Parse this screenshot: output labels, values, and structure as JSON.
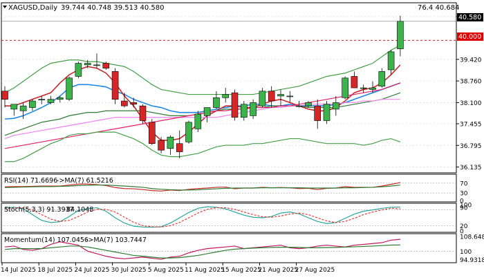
{
  "header": {
    "symbol": "XAGUSD,Daily",
    "ohlc": "39.744 40.748 39.513 40.580",
    "right_info": "76.4 40.684"
  },
  "chart_data": [
    {
      "type": "candlestick",
      "title": "XAGUSD,Daily",
      "ylim": [
        36.0,
        40.85
      ],
      "price_axis_ticks": [
        "40.725",
        "39.420",
        "38.760",
        "38.100",
        "37.455",
        "36.795",
        "36.135"
      ],
      "current_price_label": "40.580",
      "level_label": "40.000",
      "level_value": 40.0,
      "x_tick_labels": [
        {
          "label": "14 Jul 2025",
          "index": 0
        },
        {
          "label": "18 Jul 2025",
          "index": 4
        },
        {
          "label": "24 Jul 2025",
          "index": 8
        },
        {
          "label": "30 Jul 2025",
          "index": 12
        },
        {
          "label": "5 Aug 2025",
          "index": 16
        },
        {
          "label": "11 Aug 2025",
          "index": 20
        },
        {
          "label": "15 Aug 2025",
          "index": 24
        },
        {
          "label": "21 Aug 2025",
          "index": 28
        },
        {
          "label": "27 Aug 2025",
          "index": 32
        }
      ],
      "candles": [
        {
          "o": 38.45,
          "h": 38.6,
          "l": 37.95,
          "c": 38.2
        },
        {
          "o": 37.9,
          "h": 38.05,
          "l": 37.7,
          "c": 38.05
        },
        {
          "o": 37.85,
          "h": 38.1,
          "l": 37.6,
          "c": 38.0
        },
        {
          "o": 37.95,
          "h": 38.2,
          "l": 37.85,
          "c": 38.15
        },
        {
          "o": 38.2,
          "h": 38.3,
          "l": 38.05,
          "c": 38.2
        },
        {
          "o": 38.1,
          "h": 38.3,
          "l": 38.05,
          "c": 38.2
        },
        {
          "o": 38.2,
          "h": 38.3,
          "l": 38.1,
          "c": 38.25
        },
        {
          "o": 38.2,
          "h": 38.9,
          "l": 38.15,
          "c": 38.85
        },
        {
          "o": 38.9,
          "h": 39.35,
          "l": 38.85,
          "c": 39.3
        },
        {
          "o": 39.25,
          "h": 39.4,
          "l": 39.15,
          "c": 39.3
        },
        {
          "o": 39.25,
          "h": 39.6,
          "l": 39.15,
          "c": 39.25
        },
        {
          "o": 39.3,
          "h": 39.35,
          "l": 39.1,
          "c": 39.15
        },
        {
          "o": 39.05,
          "h": 39.15,
          "l": 38.05,
          "c": 38.2
        },
        {
          "o": 38.15,
          "h": 38.4,
          "l": 37.95,
          "c": 38.0
        },
        {
          "o": 38.1,
          "h": 38.25,
          "l": 37.95,
          "c": 38.05
        },
        {
          "o": 38.0,
          "h": 38.05,
          "l": 37.45,
          "c": 37.55
        },
        {
          "o": 37.5,
          "h": 37.6,
          "l": 36.8,
          "c": 36.85
        },
        {
          "o": 36.95,
          "h": 37.05,
          "l": 36.55,
          "c": 36.65
        },
        {
          "o": 36.7,
          "h": 37.1,
          "l": 36.5,
          "c": 37.05
        },
        {
          "o": 36.85,
          "h": 37.25,
          "l": 36.4,
          "c": 36.6
        },
        {
          "o": 36.9,
          "h": 37.55,
          "l": 36.85,
          "c": 37.5
        },
        {
          "o": 37.3,
          "h": 37.85,
          "l": 37.2,
          "c": 37.75
        },
        {
          "o": 37.7,
          "h": 37.95,
          "l": 37.5,
          "c": 37.95
        },
        {
          "o": 37.95,
          "h": 38.45,
          "l": 37.9,
          "c": 38.25
        },
        {
          "o": 38.25,
          "h": 38.55,
          "l": 38.1,
          "c": 38.35
        },
        {
          "o": 38.4,
          "h": 38.5,
          "l": 37.55,
          "c": 37.65
        },
        {
          "o": 37.65,
          "h": 38.15,
          "l": 37.55,
          "c": 38.05
        },
        {
          "o": 37.7,
          "h": 38.2,
          "l": 37.6,
          "c": 38.1
        },
        {
          "o": 38.0,
          "h": 38.55,
          "l": 37.95,
          "c": 38.45
        },
        {
          "o": 38.45,
          "h": 38.6,
          "l": 37.95,
          "c": 38.15
        },
        {
          "o": 38.3,
          "h": 38.5,
          "l": 38.0,
          "c": 38.35
        },
        {
          "o": 38.3,
          "h": 38.45,
          "l": 38.1,
          "c": 38.3
        },
        {
          "o": 38.0,
          "h": 38.15,
          "l": 37.95,
          "c": 38.0
        },
        {
          "o": 38.0,
          "h": 38.15,
          "l": 37.95,
          "c": 38.1
        },
        {
          "o": 38.0,
          "h": 38.2,
          "l": 37.3,
          "c": 37.55
        },
        {
          "o": 37.55,
          "h": 38.15,
          "l": 37.45,
          "c": 38.05
        },
        {
          "o": 37.9,
          "h": 38.3,
          "l": 37.7,
          "c": 38.1
        },
        {
          "o": 38.25,
          "h": 38.9,
          "l": 38.2,
          "c": 38.85
        },
        {
          "o": 38.9,
          "h": 39.05,
          "l": 38.55,
          "c": 38.55
        },
        {
          "o": 38.55,
          "h": 38.65,
          "l": 38.4,
          "c": 38.55
        },
        {
          "o": 38.5,
          "h": 38.75,
          "l": 38.4,
          "c": 38.55
        },
        {
          "o": 38.6,
          "h": 39.15,
          "l": 38.55,
          "c": 39.05
        },
        {
          "o": 39.1,
          "h": 39.7,
          "l": 38.95,
          "c": 39.65
        },
        {
          "o": 39.74,
          "h": 40.75,
          "l": 39.51,
          "c": 40.58
        }
      ],
      "series": [
        {
          "name": "",
          "color": "#1e88e5",
          "values": [
            37.6,
            37.62,
            37.7,
            37.82,
            37.95,
            38.1,
            38.3,
            38.55,
            38.65,
            38.65,
            38.62,
            38.58,
            38.45,
            38.35,
            38.2,
            38.1,
            38.0,
            37.95,
            37.85,
            37.8,
            37.8,
            37.8,
            37.85,
            37.9,
            37.95,
            38.0,
            38.0,
            38.05,
            38.05,
            38.0,
            38.0,
            38.05,
            38.0,
            38.0,
            38.0,
            38.0,
            38.05,
            38.1,
            38.2,
            38.3,
            38.4,
            38.5,
            38.6,
            38.7
          ]
        },
        {
          "name": "",
          "color": "#c62828",
          "values": [
            38.0,
            38.0,
            38.1,
            38.2,
            38.3,
            38.4,
            38.7,
            38.95,
            39.1,
            39.2,
            39.15,
            39.0,
            38.7,
            38.3,
            38.0,
            37.6,
            37.2,
            36.95,
            36.95,
            37.0,
            37.2,
            37.45,
            37.7,
            37.85,
            38.0,
            38.0,
            37.95,
            37.95,
            38.05,
            38.15,
            38.2,
            38.1,
            38.0,
            37.9,
            37.85,
            37.85,
            37.95,
            38.15,
            38.4,
            38.5,
            38.55,
            38.7,
            38.95,
            39.25
          ]
        },
        {
          "name": "",
          "color": "#2e7d32",
          "values": [
            37.1,
            37.2,
            37.3,
            37.4,
            37.5,
            37.55,
            37.6,
            37.7,
            37.75,
            37.8,
            37.8,
            37.85,
            37.85,
            37.85,
            37.85,
            37.85,
            37.8,
            37.75,
            37.7,
            37.7,
            37.7,
            37.75,
            37.8,
            37.85,
            37.9,
            37.9,
            37.9,
            37.95,
            37.95,
            38.0,
            38.0,
            38.0,
            38.0,
            37.95,
            37.95,
            37.95,
            37.95,
            38.0,
            38.05,
            38.1,
            38.15,
            38.2,
            38.3,
            38.4
          ]
        },
        {
          "name": "",
          "color": "#ee82ee",
          "values": [
            37.0,
            37.1,
            37.15,
            37.2,
            37.25,
            37.3,
            37.35,
            37.4,
            37.45,
            37.5,
            37.55,
            37.6,
            37.65,
            37.65,
            37.65,
            37.65,
            37.65,
            37.65,
            37.65,
            37.65,
            37.65,
            37.65,
            37.65,
            37.65,
            37.7,
            37.75,
            37.8,
            37.85,
            37.9,
            37.95,
            37.95,
            38.0,
            38.0,
            38.05,
            38.05,
            38.05,
            38.05,
            38.1,
            38.1,
            38.15,
            38.15,
            38.2,
            38.2,
            38.2
          ]
        },
        {
          "name": "",
          "color": "#e91e63",
          "values": [
            36.7,
            36.75,
            36.8,
            36.85,
            36.9,
            36.95,
            37.0,
            37.05,
            37.1,
            37.15,
            37.2,
            37.25,
            37.3,
            37.35,
            37.4,
            37.45,
            37.5,
            37.55,
            37.6,
            37.65,
            37.7,
            37.75,
            37.8,
            37.85,
            37.85,
            37.9,
            37.9,
            37.95,
            37.95,
            37.95,
            38.0,
            38.0,
            38.05,
            38.1,
            38.15,
            38.2,
            38.25,
            38.3,
            38.35,
            38.4,
            38.45,
            38.5,
            38.6,
            38.7
          ]
        },
        {
          "name": "",
          "color": "#43a047",
          "values": [
            38.4,
            38.55,
            38.75,
            38.95,
            39.15,
            39.3,
            39.35,
            39.4,
            39.4,
            39.35,
            39.35,
            39.3,
            39.25,
            39.2,
            39.05,
            38.85,
            38.65,
            38.5,
            38.45,
            38.4,
            38.35,
            38.35,
            38.35,
            38.35,
            38.35,
            38.35,
            38.35,
            38.35,
            38.4,
            38.45,
            38.5,
            38.55,
            38.6,
            38.7,
            38.8,
            38.9,
            38.95,
            39.0,
            39.1,
            39.2,
            39.3,
            39.5,
            39.7,
            39.85
          ]
        },
        {
          "name": "",
          "color": "#43a047",
          "values": [
            36.3,
            36.3,
            36.4,
            36.55,
            36.7,
            36.85,
            36.95,
            37.1,
            37.15,
            37.15,
            37.2,
            37.2,
            37.2,
            37.1,
            37.0,
            36.85,
            36.65,
            36.5,
            36.45,
            36.45,
            36.5,
            36.55,
            36.65,
            36.75,
            36.8,
            36.8,
            36.8,
            36.85,
            36.85,
            36.9,
            36.95,
            37.0,
            37.0,
            36.95,
            36.9,
            36.85,
            36.85,
            36.85,
            36.85,
            36.8,
            36.85,
            36.95,
            37.0,
            36.9
          ]
        }
      ]
    },
    {
      "type": "line",
      "title": "RSI(14) 71.6696 ->MA(7) 61.5216",
      "label_prefix": "RSI(14) 71.6696 ",
      "label_suffix": "->MA(7) 61.5216",
      "ylim": [
        0,
        100
      ],
      "tick_labels": [
        "70",
        "30",
        "0"
      ],
      "levels": [
        70,
        30
      ],
      "series": [
        {
          "name": "RSI(14)",
          "color": "#c62828",
          "values": [
            55,
            56,
            56,
            57,
            58,
            58,
            58,
            62,
            66,
            66,
            64,
            60,
            52,
            48,
            47,
            44,
            40,
            38,
            42,
            40,
            45,
            48,
            50,
            53,
            54,
            47,
            50,
            50,
            53,
            51,
            52,
            51,
            48,
            49,
            44,
            49,
            50,
            56,
            53,
            53,
            53,
            58,
            65,
            72
          ]
        },
        {
          "name": "MA(7)",
          "color": "#2e7d32",
          "values": [
            52,
            53,
            54,
            55,
            56,
            56,
            57,
            58,
            60,
            61,
            62,
            62,
            60,
            58,
            56,
            53,
            48,
            45,
            43,
            42,
            42,
            43,
            45,
            47,
            49,
            50,
            50,
            50,
            51,
            51,
            51,
            51,
            51,
            50,
            50,
            50,
            50,
            51,
            51,
            52,
            53,
            55,
            58,
            62
          ]
        }
      ]
    },
    {
      "type": "line",
      "title": "Stoch(5,3,3) 91.3937 84.1048",
      "label_prefix": "Stoch(5,3,3) 91.3937 ",
      "label_suffix": "84.1048",
      "ylim": [
        0,
        100
      ],
      "tick_labels": [
        "90",
        "100",
        "20",
        "0"
      ],
      "levels": [
        80,
        20
      ],
      "series": [
        {
          "name": "%K",
          "color": "#26a69a",
          "values": [
            88,
            90,
            85,
            62,
            40,
            32,
            35,
            55,
            78,
            85,
            88,
            75,
            50,
            30,
            18,
            15,
            14,
            16,
            30,
            50,
            70,
            86,
            92,
            90,
            84,
            72,
            60,
            52,
            50,
            55,
            68,
            72,
            65,
            50,
            36,
            28,
            32,
            48,
            64,
            75,
            80,
            86,
            90,
            91
          ]
        },
        {
          "name": "%D",
          "color": "#e53935",
          "values": [
            84,
            88,
            88,
            80,
            62,
            45,
            36,
            40,
            55,
            72,
            82,
            82,
            72,
            52,
            33,
            20,
            16,
            15,
            20,
            32,
            50,
            68,
            82,
            88,
            88,
            82,
            72,
            62,
            54,
            52,
            57,
            64,
            68,
            62,
            50,
            38,
            32,
            36,
            48,
            62,
            72,
            80,
            86,
            84
          ]
        }
      ]
    },
    {
      "type": "line",
      "title": "Momentum(14) 107.0456 ->MA(7) 103.7447",
      "label_prefix": "Momentum(14) 107.0456 ",
      "label_suffix": "->MA(7) 103.7447",
      "ylim": [
        94.0,
        109.5
      ],
      "tick_labels": [
        "108.6482",
        "100",
        "94.9318"
      ],
      "levels": [
        100
      ],
      "series": [
        {
          "name": "Momentum(14)",
          "color": "#c2185b",
          "values": [
            102.5,
            103.0,
            101.0,
            100.5,
            101.5,
            104.0,
            105.5,
            104.5,
            103.5,
            100.0,
            98.5,
            97.0,
            96.0,
            95.5,
            96.0,
            96.5,
            95.8,
            95.2,
            96.5,
            97.0,
            99.0,
            100.5,
            101.5,
            102.0,
            102.5,
            103.0,
            101.5,
            102.0,
            102.5,
            103.0,
            103.5,
            102.0,
            101.5,
            102.0,
            103.0,
            103.5,
            103.0,
            102.5,
            103.5,
            104.0,
            104.5,
            105.0,
            106.5,
            107.0
          ]
        },
        {
          "name": "MA(7)",
          "color": "#2e7d32",
          "values": [
            101.0,
            101.5,
            101.5,
            101.5,
            101.5,
            102.0,
            102.5,
            103.0,
            103.0,
            102.5,
            101.5,
            100.5,
            99.5,
            98.5,
            97.5,
            97.0,
            96.5,
            96.0,
            96.0,
            96.2,
            96.8,
            97.5,
            98.5,
            99.5,
            100.5,
            101.2,
            101.5,
            101.8,
            102.0,
            102.2,
            102.3,
            102.3,
            102.2,
            102.0,
            102.0,
            102.1,
            102.2,
            102.4,
            102.6,
            102.8,
            103.0,
            103.3,
            103.6,
            103.7
          ]
        }
      ]
    }
  ],
  "colors": {
    "bull": "#3cb44b",
    "bear": "#d62728",
    "grid": "#cfcfcf",
    "axis": "#000000",
    "level_line": "#c00000",
    "price_tag_bg": "#000000"
  }
}
